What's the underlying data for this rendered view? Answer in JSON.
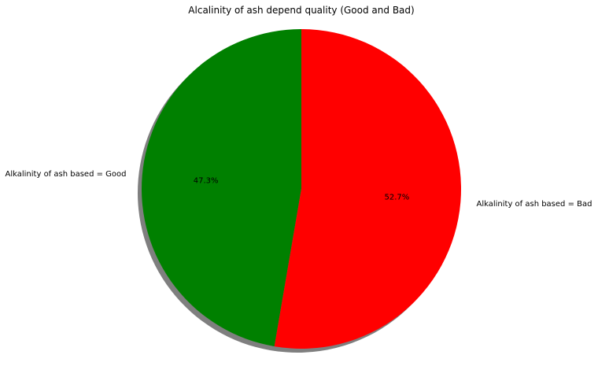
{
  "chart_data": {
    "type": "pie",
    "title": "Alcalinity of ash depend quality (Good and Bad)",
    "slices": [
      {
        "label": "Alkalinity of ash based = Good",
        "value": 47.3,
        "pct_label": "47.3%",
        "color": "#008000"
      },
      {
        "label": "Alkalinity of ash based = Bad",
        "value": 52.7,
        "pct_label": "52.7%",
        "color": "#ff0000"
      }
    ],
    "start_angle_deg": 90,
    "direction": "counterclockwise",
    "shadow": true
  }
}
